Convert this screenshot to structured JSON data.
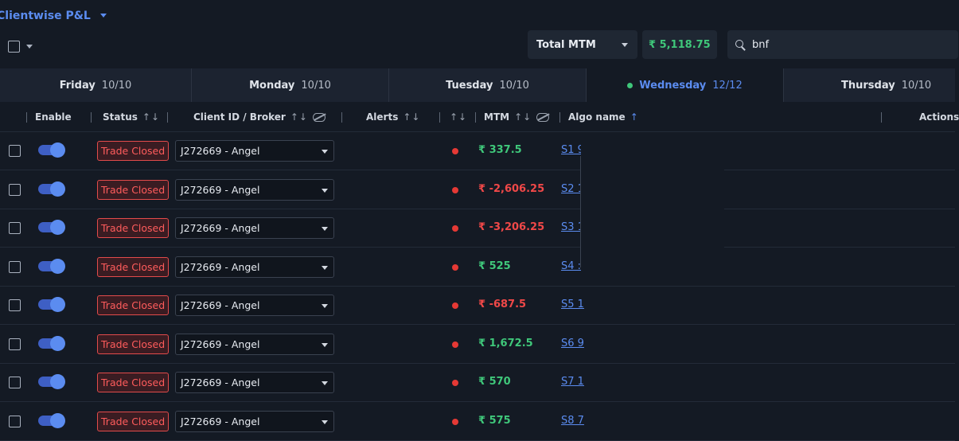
{
  "header": {
    "title": "Clientwise P&L",
    "mtm_type": "Total MTM",
    "mtm_total": "₹ 5,118.75",
    "search": {
      "value": "bnf",
      "placeholder": ""
    }
  },
  "tabs": [
    {
      "day": "Friday",
      "count": "10/10",
      "active": false
    },
    {
      "day": "Monday",
      "count": "10/10",
      "active": false
    },
    {
      "day": "Tuesday",
      "count": "10/10",
      "active": false
    },
    {
      "day": "Wednesday",
      "count": "12/12",
      "active": true
    },
    {
      "day": "Thursday",
      "count": "10/10",
      "active": false
    }
  ],
  "columns": {
    "enable": "Enable",
    "status": "Status",
    "client": "Client ID / Broker",
    "alerts": "Alerts",
    "mtm": "MTM",
    "algo": "Algo name",
    "actions": "Actions",
    "sort_arrows": "↑↓",
    "sort_up": "↑"
  },
  "rows": [
    {
      "status": "Trade Closed",
      "broker": "J272669 - Angel",
      "mtm": "₹ 337.5",
      "mtm_sign": "pos",
      "algo": "S1 9"
    },
    {
      "status": "Trade Closed",
      "broker": "J272669 - Angel",
      "mtm": "₹ -2,606.25",
      "mtm_sign": "neg",
      "algo": "S2 1"
    },
    {
      "status": "Trade Closed",
      "broker": "J272669 - Angel",
      "mtm": "₹ -3,206.25",
      "mtm_sign": "neg",
      "algo": "S3 1"
    },
    {
      "status": "Trade Closed",
      "broker": "J272669 - Angel",
      "mtm": "₹ 525",
      "mtm_sign": "pos",
      "algo": "S4 :"
    },
    {
      "status": "Trade Closed",
      "broker": "J272669 - Angel",
      "mtm": "₹ -687.5",
      "mtm_sign": "neg",
      "algo": "S5 1"
    },
    {
      "status": "Trade Closed",
      "broker": "J272669 - Angel",
      "mtm": "₹ 1,672.5",
      "mtm_sign": "pos",
      "algo": "S6 9"
    },
    {
      "status": "Trade Closed",
      "broker": "J272669 - Angel",
      "mtm": "₹ 570",
      "mtm_sign": "pos",
      "algo": "S7 1"
    },
    {
      "status": "Trade Closed",
      "broker": "J272669 - Angel",
      "mtm": "₹ 575",
      "mtm_sign": "pos",
      "algo": "S8 7"
    }
  ],
  "colors": {
    "accent": "#5b8cf0",
    "positive": "#3fc77a",
    "negative": "#f04848"
  }
}
